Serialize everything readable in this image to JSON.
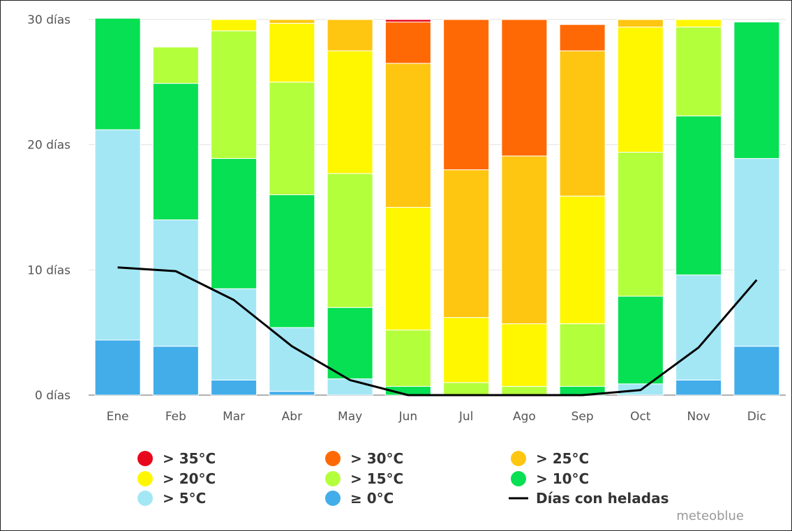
{
  "chart_data": {
    "type": "bar",
    "stacked": true,
    "categories": [
      "Ene",
      "Feb",
      "Mar",
      "Abr",
      "May",
      "Jun",
      "Jul",
      "Ago",
      "Sep",
      "Oct",
      "Nov",
      "Dic"
    ],
    "ylim": [
      0,
      30
    ],
    "yticks": [
      {
        "value": 0,
        "label": "0 días"
      },
      {
        "value": 10,
        "label": "10 días"
      },
      {
        "value": 20,
        "label": "20 días"
      },
      {
        "value": 30,
        "label": "30 días"
      }
    ],
    "grid": true,
    "legend_position": "bottom",
    "series": [
      {
        "name": "≥ 0°C",
        "color": "#42ade9",
        "values": [
          4.4,
          3.9,
          1.2,
          0.3,
          0,
          0,
          0,
          0,
          0,
          0,
          1.2,
          3.9
        ]
      },
      {
        "name": "> 5°C",
        "color": "#a3e7f5",
        "values": [
          16.8,
          10.1,
          7.3,
          5.1,
          1.3,
          0,
          0,
          0,
          0,
          0.9,
          8.4,
          15.0
        ]
      },
      {
        "name": "> 10°C",
        "color": "#06e052",
        "values": [
          8.9,
          10.9,
          10.4,
          10.6,
          5.7,
          0.7,
          0,
          0,
          0.7,
          7.0,
          12.7,
          10.9
        ]
      },
      {
        "name": "> 15°C",
        "color": "#b4ff3c",
        "values": [
          0,
          2.9,
          10.2,
          9.0,
          10.7,
          4.5,
          1.0,
          0.7,
          5.0,
          11.5,
          7.1,
          0
        ]
      },
      {
        "name": "> 20°C",
        "color": "#fff700",
        "values": [
          0,
          0,
          0.9,
          4.7,
          9.8,
          9.8,
          5.2,
          5.0,
          10.2,
          10.0,
          0.6,
          0
        ]
      },
      {
        "name": "> 25°C",
        "color": "#ffc611",
        "values": [
          0,
          0,
          0,
          0.3,
          2.5,
          11.5,
          11.8,
          13.4,
          11.6,
          0.6,
          0,
          0
        ]
      },
      {
        "name": "> 30°C",
        "color": "#ff6905",
        "values": [
          0,
          0,
          0,
          0,
          0,
          3.3,
          12.0,
          10.9,
          2.1,
          0,
          0,
          0
        ]
      },
      {
        "name": "> 35°C",
        "color": "#e8081c",
        "values": [
          0,
          0,
          0,
          0,
          0,
          0.2,
          0,
          0,
          0,
          0,
          0,
          0
        ]
      }
    ],
    "line": {
      "name": "Días con heladas",
      "color": "#000000",
      "values": [
        10.2,
        9.9,
        7.6,
        3.9,
        1.2,
        0,
        0,
        0,
        0,
        0.4,
        3.8,
        9.2
      ]
    }
  },
  "legend": [
    {
      "label": "> 35°C",
      "color": "#e8081c",
      "kind": "dot"
    },
    {
      "label": "> 30°C",
      "color": "#ff6905",
      "kind": "dot"
    },
    {
      "label": "> 25°C",
      "color": "#ffc611",
      "kind": "dot"
    },
    {
      "label": "> 20°C",
      "color": "#fff700",
      "kind": "dot"
    },
    {
      "label": "> 15°C",
      "color": "#b4ff3c",
      "kind": "dot"
    },
    {
      "label": "> 10°C",
      "color": "#06e052",
      "kind": "dot"
    },
    {
      "label": "> 5°C",
      "color": "#a3e7f5",
      "kind": "dot"
    },
    {
      "label": "≥ 0°C",
      "color": "#42ade9",
      "kind": "dot"
    },
    {
      "label": "Días con heladas",
      "color": "#000000",
      "kind": "line"
    }
  ],
  "credit": "meteoblue"
}
